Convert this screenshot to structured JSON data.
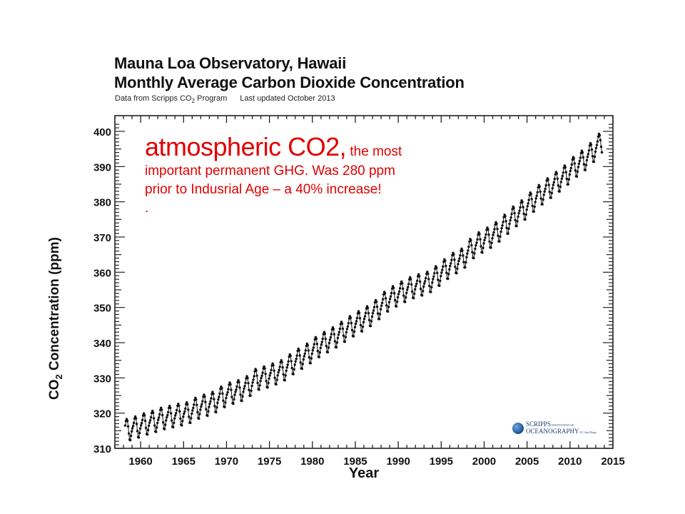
{
  "chart_data": {
    "type": "line",
    "title": "Mauna Loa Observatory, Hawaii",
    "subtitle": "Monthly Average Carbon Dioxide Concentration",
    "source_note": {
      "prefix": "Data from Scripps CO",
      "sub": "2",
      "suffix": " Program",
      "updated": "Last updated October 2013"
    },
    "xlabel": "Year",
    "ylabel": {
      "prefix": "CO",
      "sub": "2",
      "suffix": " Concentration (ppm)"
    },
    "xlim": [
      1957,
      2015
    ],
    "ylim": [
      310,
      402
    ],
    "x_ticks": [
      "1960",
      "1965",
      "1970",
      "1975",
      "1980",
      "1985",
      "1990",
      "1995",
      "2000",
      "2005",
      "2010",
      "2015"
    ],
    "y_ticks": [
      "310",
      "320",
      "330",
      "340",
      "350",
      "360",
      "370",
      "380",
      "390",
      "400"
    ],
    "grid": false,
    "series": [
      {
        "name": "Monthly average CO2",
        "start_year": 1958,
        "annual_means": [
          315.3,
          316.0,
          316.9,
          317.6,
          318.5,
          319.0,
          319.6,
          320.0,
          321.4,
          322.2,
          323.0,
          324.6,
          325.7,
          326.3,
          327.5,
          329.7,
          330.2,
          331.1,
          332.0,
          333.8,
          335.4,
          336.8,
          338.7,
          340.1,
          341.4,
          343.0,
          344.6,
          346.0,
          347.4,
          349.2,
          351.6,
          353.1,
          354.4,
          355.6,
          356.4,
          357.1,
          358.8,
          360.8,
          362.6,
          363.7,
          366.7,
          368.4,
          369.7,
          371.3,
          373.5,
          375.8,
          377.5,
          379.8,
          381.9,
          383.8,
          385.6,
          387.4,
          389.9,
          391.6,
          393.8,
          396.5
        ],
        "seasonal_offsets": [
          -0.0,
          0.6,
          1.4,
          2.6,
          3.1,
          2.5,
          0.9,
          -1.2,
          -3.0,
          -3.2,
          -2.0,
          -0.8
        ],
        "months_in_last_year": 9
      }
    ]
  },
  "annotation": {
    "big": "atmospheric CO2,",
    "small": " the most",
    "line2": "important permanent GHG.   Was 280 ppm",
    "line3": "prior to Indusrial Age – a 40% increase!",
    "line4": "."
  },
  "logo": {
    "line1": "SCRIPPS",
    "line1_small": " INSTITUTION OF",
    "line2": "OCEANOGRAPHY",
    "line2_small": " UC San Diego"
  }
}
